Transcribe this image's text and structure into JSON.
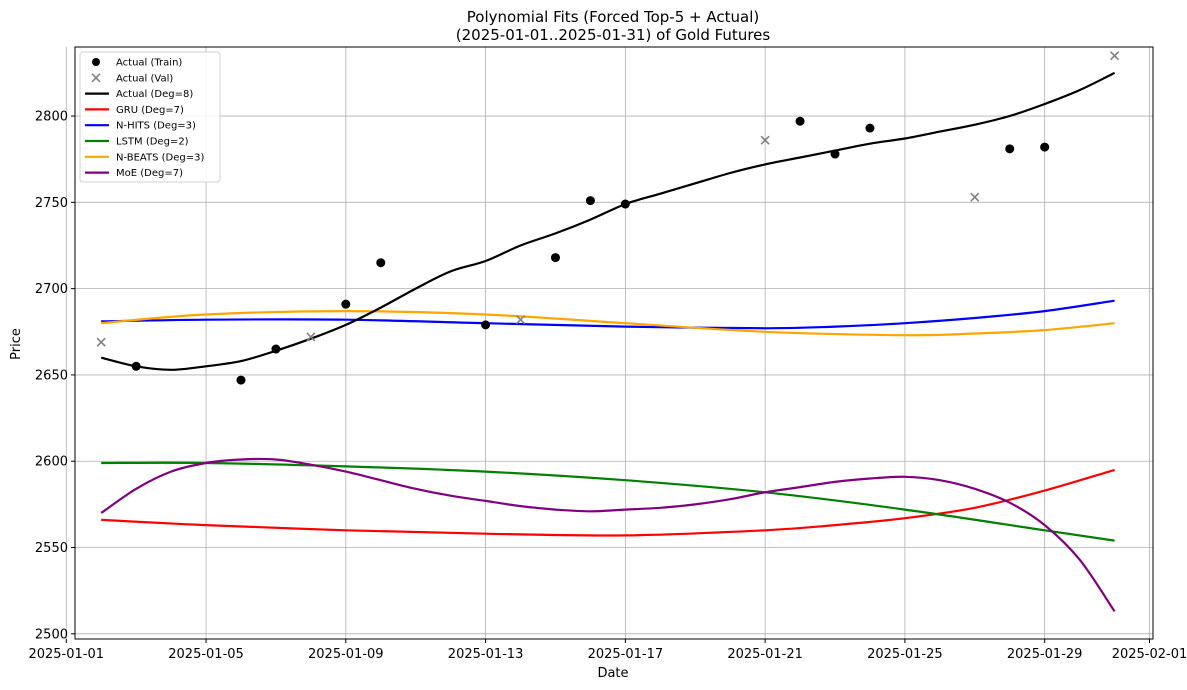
{
  "chart_data": {
    "type": "scatter",
    "title": "Polynomial Fits (Forced Top-5 + Actual)",
    "subtitle": "(2025-01-01..2025-01-31) of Gold Futures",
    "xlabel": "Date",
    "ylabel": "Price",
    "xlim": [
      "2025-01-01",
      "2025-02-01"
    ],
    "ylim": [
      2500,
      2840
    ],
    "x_ticks": [
      "2025-01-01",
      "2025-01-05",
      "2025-01-09",
      "2025-01-13",
      "2025-01-17",
      "2025-01-21",
      "2025-01-25",
      "2025-01-29",
      "2025-02-01"
    ],
    "y_ticks": [
      2500,
      2550,
      2600,
      2650,
      2700,
      2750,
      2800
    ],
    "grid": true,
    "legend_position": "top-left",
    "series": [
      {
        "name": "Actual (Train)",
        "kind": "scatter",
        "marker": "circle",
        "color": "#000000",
        "points": [
          {
            "x": "2025-01-03",
            "y": 2655
          },
          {
            "x": "2025-01-06",
            "y": 2647
          },
          {
            "x": "2025-01-07",
            "y": 2665
          },
          {
            "x": "2025-01-09",
            "y": 2691
          },
          {
            "x": "2025-01-10",
            "y": 2715
          },
          {
            "x": "2025-01-13",
            "y": 2679
          },
          {
            "x": "2025-01-15",
            "y": 2718
          },
          {
            "x": "2025-01-16",
            "y": 2751
          },
          {
            "x": "2025-01-17",
            "y": 2749
          },
          {
            "x": "2025-01-22",
            "y": 2797
          },
          {
            "x": "2025-01-23",
            "y": 2778
          },
          {
            "x": "2025-01-24",
            "y": 2793
          },
          {
            "x": "2025-01-28",
            "y": 2781
          },
          {
            "x": "2025-01-29",
            "y": 2782
          }
        ]
      },
      {
        "name": "Actual (Val)",
        "kind": "scatter",
        "marker": "x",
        "color": "#808080",
        "points": [
          {
            "x": "2025-01-02",
            "y": 2669
          },
          {
            "x": "2025-01-08",
            "y": 2672
          },
          {
            "x": "2025-01-14",
            "y": 2682
          },
          {
            "x": "2025-01-21",
            "y": 2786
          },
          {
            "x": "2025-01-27",
            "y": 2753
          },
          {
            "x": "2025-01-31",
            "y": 2835
          }
        ]
      },
      {
        "name": "Actual (Deg=8)",
        "kind": "line",
        "color": "#000000",
        "points": [
          {
            "x": "2025-01-02",
            "y": 2660
          },
          {
            "x": "2025-01-03",
            "y": 2655
          },
          {
            "x": "2025-01-04",
            "y": 2653
          },
          {
            "x": "2025-01-05",
            "y": 2655
          },
          {
            "x": "2025-01-06",
            "y": 2658
          },
          {
            "x": "2025-01-07",
            "y": 2664
          },
          {
            "x": "2025-01-08",
            "y": 2671
          },
          {
            "x": "2025-01-09",
            "y": 2679
          },
          {
            "x": "2025-01-10",
            "y": 2689
          },
          {
            "x": "2025-01-11",
            "y": 2700
          },
          {
            "x": "2025-01-12",
            "y": 2710
          },
          {
            "x": "2025-01-13",
            "y": 2716
          },
          {
            "x": "2025-01-14",
            "y": 2725
          },
          {
            "x": "2025-01-15",
            "y": 2732
          },
          {
            "x": "2025-01-16",
            "y": 2740
          },
          {
            "x": "2025-01-17",
            "y": 2749
          },
          {
            "x": "2025-01-18",
            "y": 2755
          },
          {
            "x": "2025-01-19",
            "y": 2761
          },
          {
            "x": "2025-01-20",
            "y": 2767
          },
          {
            "x": "2025-01-21",
            "y": 2772
          },
          {
            "x": "2025-01-22",
            "y": 2776
          },
          {
            "x": "2025-01-23",
            "y": 2780
          },
          {
            "x": "2025-01-24",
            "y": 2784
          },
          {
            "x": "2025-01-25",
            "y": 2787
          },
          {
            "x": "2025-01-26",
            "y": 2791
          },
          {
            "x": "2025-01-27",
            "y": 2795
          },
          {
            "x": "2025-01-28",
            "y": 2800
          },
          {
            "x": "2025-01-29",
            "y": 2807
          },
          {
            "x": "2025-01-30",
            "y": 2815
          },
          {
            "x": "2025-01-31",
            "y": 2825
          }
        ]
      },
      {
        "name": "GRU (Deg=7)",
        "kind": "line",
        "color": "#ff0000",
        "points": [
          {
            "x": "2025-01-02",
            "y": 2566
          },
          {
            "x": "2025-01-05",
            "y": 2563
          },
          {
            "x": "2025-01-09",
            "y": 2560
          },
          {
            "x": "2025-01-13",
            "y": 2558
          },
          {
            "x": "2025-01-17",
            "y": 2557
          },
          {
            "x": "2025-01-21",
            "y": 2560
          },
          {
            "x": "2025-01-23",
            "y": 2563
          },
          {
            "x": "2025-01-25",
            "y": 2567
          },
          {
            "x": "2025-01-27",
            "y": 2573
          },
          {
            "x": "2025-01-29",
            "y": 2583
          },
          {
            "x": "2025-01-31",
            "y": 2595
          }
        ]
      },
      {
        "name": "N-HITS (Deg=3)",
        "kind": "line",
        "color": "#0000ff",
        "points": [
          {
            "x": "2025-01-02",
            "y": 2681
          },
          {
            "x": "2025-01-05",
            "y": 2682
          },
          {
            "x": "2025-01-09",
            "y": 2682
          },
          {
            "x": "2025-01-13",
            "y": 2680
          },
          {
            "x": "2025-01-17",
            "y": 2678
          },
          {
            "x": "2025-01-21",
            "y": 2677
          },
          {
            "x": "2025-01-23",
            "y": 2678
          },
          {
            "x": "2025-01-25",
            "y": 2680
          },
          {
            "x": "2025-01-27",
            "y": 2683
          },
          {
            "x": "2025-01-29",
            "y": 2687
          },
          {
            "x": "2025-01-31",
            "y": 2693
          }
        ]
      },
      {
        "name": "LSTM (Deg=2)",
        "kind": "line",
        "color": "#008000",
        "points": [
          {
            "x": "2025-01-02",
            "y": 2599
          },
          {
            "x": "2025-01-05",
            "y": 2599
          },
          {
            "x": "2025-01-09",
            "y": 2597
          },
          {
            "x": "2025-01-13",
            "y": 2594
          },
          {
            "x": "2025-01-17",
            "y": 2589
          },
          {
            "x": "2025-01-21",
            "y": 2582
          },
          {
            "x": "2025-01-25",
            "y": 2572
          },
          {
            "x": "2025-01-29",
            "y": 2560
          },
          {
            "x": "2025-01-31",
            "y": 2554
          }
        ]
      },
      {
        "name": "N-BEATS (Deg=3)",
        "kind": "line",
        "color": "#ffa500",
        "points": [
          {
            "x": "2025-01-02",
            "y": 2680
          },
          {
            "x": "2025-01-05",
            "y": 2685
          },
          {
            "x": "2025-01-09",
            "y": 2687
          },
          {
            "x": "2025-01-13",
            "y": 2685
          },
          {
            "x": "2025-01-17",
            "y": 2680
          },
          {
            "x": "2025-01-21",
            "y": 2675
          },
          {
            "x": "2025-01-25",
            "y": 2673
          },
          {
            "x": "2025-01-27",
            "y": 2674
          },
          {
            "x": "2025-01-29",
            "y": 2676
          },
          {
            "x": "2025-01-31",
            "y": 2680
          }
        ]
      },
      {
        "name": "MoE (Deg=7)",
        "kind": "line",
        "color": "#800080",
        "points": [
          {
            "x": "2025-01-02",
            "y": 2570
          },
          {
            "x": "2025-01-03",
            "y": 2584
          },
          {
            "x": "2025-01-04",
            "y": 2594
          },
          {
            "x": "2025-01-05",
            "y": 2599
          },
          {
            "x": "2025-01-06",
            "y": 2601
          },
          {
            "x": "2025-01-07",
            "y": 2601
          },
          {
            "x": "2025-01-08",
            "y": 2598
          },
          {
            "x": "2025-01-09",
            "y": 2594
          },
          {
            "x": "2025-01-10",
            "y": 2589
          },
          {
            "x": "2025-01-11",
            "y": 2584
          },
          {
            "x": "2025-01-12",
            "y": 2580
          },
          {
            "x": "2025-01-13",
            "y": 2577
          },
          {
            "x": "2025-01-14",
            "y": 2574
          },
          {
            "x": "2025-01-15",
            "y": 2572
          },
          {
            "x": "2025-01-16",
            "y": 2571
          },
          {
            "x": "2025-01-17",
            "y": 2572
          },
          {
            "x": "2025-01-18",
            "y": 2573
          },
          {
            "x": "2025-01-19",
            "y": 2575
          },
          {
            "x": "2025-01-20",
            "y": 2578
          },
          {
            "x": "2025-01-21",
            "y": 2582
          },
          {
            "x": "2025-01-22",
            "y": 2585
          },
          {
            "x": "2025-01-23",
            "y": 2588
          },
          {
            "x": "2025-01-24",
            "y": 2590
          },
          {
            "x": "2025-01-25",
            "y": 2591
          },
          {
            "x": "2025-01-26",
            "y": 2589
          },
          {
            "x": "2025-01-27",
            "y": 2584
          },
          {
            "x": "2025-01-28",
            "y": 2576
          },
          {
            "x": "2025-01-29",
            "y": 2563
          },
          {
            "x": "2025-01-30",
            "y": 2543
          },
          {
            "x": "2025-01-31",
            "y": 2513
          }
        ]
      }
    ]
  }
}
